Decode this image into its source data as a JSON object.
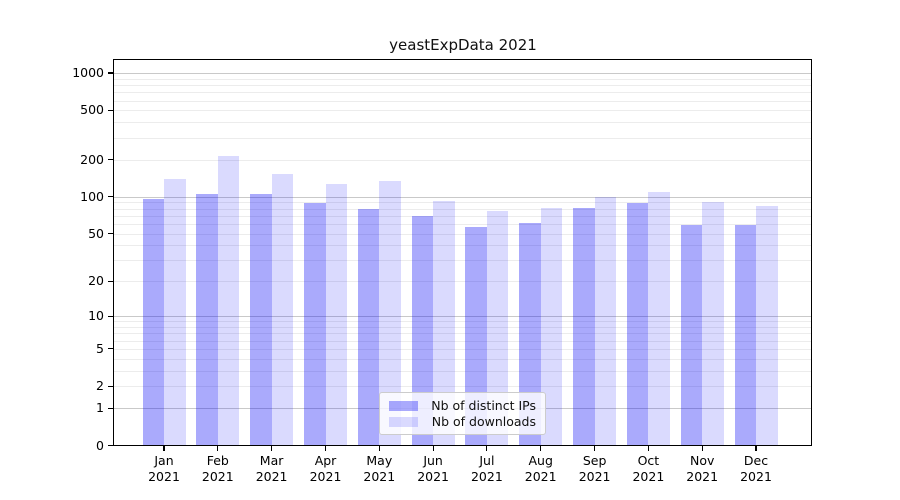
{
  "chart_data": {
    "type": "bar",
    "title": "yeastExpData 2021",
    "categories": [
      "Jan 2021",
      "Feb 2021",
      "Mar 2021",
      "Apr 2021",
      "May 2021",
      "Jun 2021",
      "Jul 2021",
      "Aug 2021",
      "Sep 2021",
      "Oct 2021",
      "Nov 2021",
      "Dec 2021"
    ],
    "series": [
      {
        "name": "Nb of distinct IPs",
        "color": "rgba(10,10,245,0.345)",
        "values": [
          96,
          106,
          105,
          89,
          79,
          69,
          57,
          61,
          81,
          89,
          59,
          59
        ]
      },
      {
        "name": "Nb of downloads",
        "color": "rgba(10,10,245,0.15)",
        "values": [
          140,
          212,
          153,
          128,
          133,
          92,
          76,
          81,
          100,
          110,
          91,
          84
        ]
      }
    ],
    "xlabel": "",
    "ylabel": "",
    "yscale": "log10(x+1)",
    "ylim": [
      0,
      1258
    ],
    "yticks": [
      0,
      1,
      2,
      5,
      10,
      20,
      50,
      100,
      200,
      500,
      1000
    ],
    "grid": "horizontal, major at powers of 10 plus faint minors",
    "legend_position": "lower center"
  },
  "colors": {
    "background": "#ffffff",
    "bar_distinct_ips": "#aaaaf9",
    "bar_downloads": "#dbdbfc",
    "grid_major": "#c9c9c9",
    "grid_minor": "#ececec",
    "axis": "#000000"
  }
}
